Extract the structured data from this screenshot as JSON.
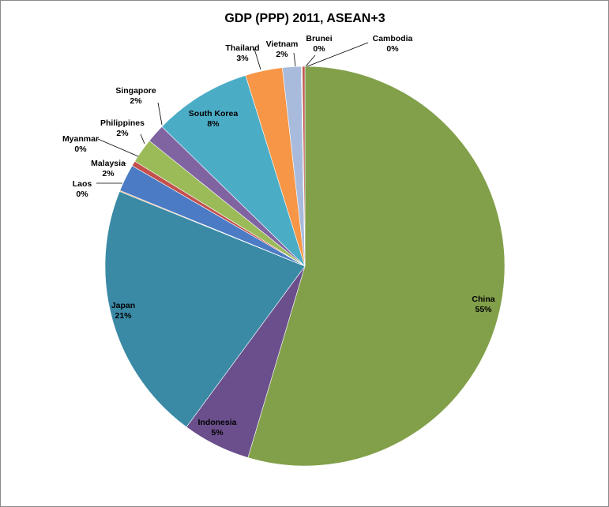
{
  "chart_data": {
    "type": "pie",
    "title": "GDP (PPP) 2011, ASEAN+3",
    "slices": [
      {
        "name": "China",
        "value": 54.6,
        "label": "55%",
        "color": "#82A04A"
      },
      {
        "name": "Indonesia",
        "value": 5.5,
        "label": "5%",
        "color": "#6A4F8C"
      },
      {
        "name": "Japan",
        "value": 21.0,
        "label": "21%",
        "color": "#3A8AA6"
      },
      {
        "name": "Laos",
        "value": 0.08,
        "label": "0%",
        "color": "#E8924A"
      },
      {
        "name": "Malaysia",
        "value": 2.2,
        "label": "2%",
        "color": "#4A7BC4"
      },
      {
        "name": "Myanmar",
        "value": 0.42,
        "label": "0%",
        "color": "#C4504D"
      },
      {
        "name": "Philippines",
        "value": 2.0,
        "label": "2%",
        "color": "#9BBB59"
      },
      {
        "name": "Singapore",
        "value": 1.5,
        "label": "2%",
        "color": "#8064A2"
      },
      {
        "name": "South Korea",
        "value": 7.9,
        "label": "8%",
        "color": "#4BACC6"
      },
      {
        "name": "Thailand",
        "value": 3.0,
        "label": "3%",
        "color": "#F79646"
      },
      {
        "name": "Vietnam",
        "value": 1.5,
        "label": "2%",
        "color": "#A9BBDC"
      },
      {
        "name": "Brunei",
        "value": 0.1,
        "label": "0%",
        "color": "#D9D9D9"
      },
      {
        "name": "Cambodia",
        "value": 0.2,
        "label": "0%",
        "color": "#C0504D"
      }
    ]
  }
}
